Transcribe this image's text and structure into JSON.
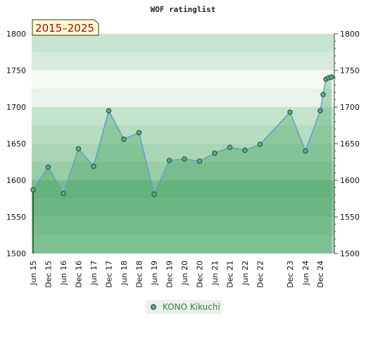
{
  "chart_data": {
    "type": "line",
    "title": "WOF ratinglist",
    "period_label": "2015–2025",
    "xlabel": "",
    "ylabel": "",
    "ylim": [
      1500,
      1800
    ],
    "y_ticks": [
      1500,
      1550,
      1600,
      1650,
      1700,
      1750,
      1800
    ],
    "x_tick_labels": [
      "Jun 15",
      "Dec 15",
      "Jun 16",
      "Dec 16",
      "Jun 17",
      "Dec 17",
      "Jun 18",
      "Dec 18",
      "Jun 19",
      "Dec 19",
      "Jun 20",
      "Dec 20",
      "Jun 21",
      "Dec 21",
      "Jun 22",
      "Dec 22",
      "Dec 23",
      "Jun 24",
      "Dec 24"
    ],
    "legend_position": "bottom-center",
    "colors": {
      "line": "#5f9fcf",
      "marker_fill": "#5cab7d",
      "marker_stroke": "#1f4d30",
      "area": "#3ea05f",
      "badge_fill": "#ffffcc"
    },
    "series": [
      {
        "name": "KONO Kikuchi",
        "x": [
          "Jun 15",
          "Dec 15",
          "Jun 16",
          "Dec 16",
          "Jun 17",
          "Dec 17",
          "Jun 18",
          "Dec 18",
          "Jun 19",
          "Dec 19",
          "Jun 20",
          "Dec 20",
          "Jun 21",
          "Dec 21",
          "Jun 22",
          "Dec 22",
          "Dec 23",
          "Jun 24",
          "Dec 24",
          "",
          "",
          "",
          ""
        ],
        "values": [
          1587,
          1618,
          1582,
          1643,
          1619,
          1695,
          1656,
          1665,
          1581,
          1627,
          1629,
          1626,
          1637,
          1645,
          1641,
          1649,
          1693,
          1640,
          1695,
          1717,
          1738,
          1740,
          1741
        ]
      }
    ]
  }
}
